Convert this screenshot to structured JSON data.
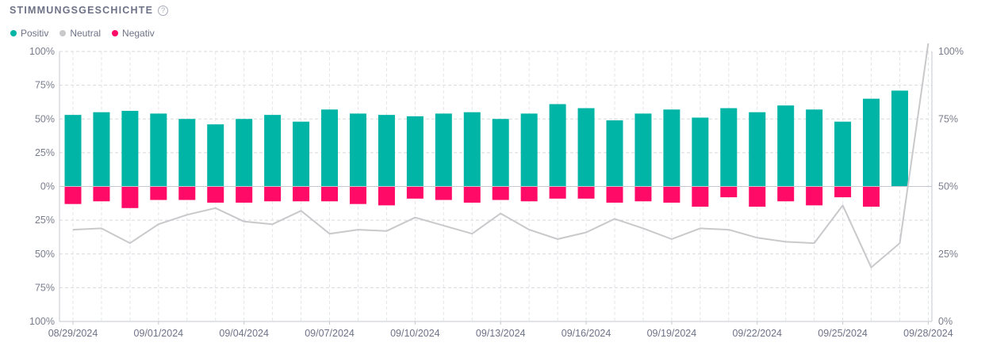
{
  "header": {
    "title": "STIMMUNGSGESCHICHTE",
    "help_icon": "question-circle-icon"
  },
  "legend": [
    {
      "label": "Positiv",
      "color": "#00b5a5"
    },
    {
      "label": "Neutral",
      "color": "#c9c9cc"
    },
    {
      "label": "Negativ",
      "color": "#ff0a66"
    }
  ],
  "chart_data": {
    "type": "bar",
    "categories": [
      "08/29/2024",
      "08/30/2024",
      "08/31/2024",
      "09/01/2024",
      "09/02/2024",
      "09/03/2024",
      "09/04/2024",
      "09/05/2024",
      "09/06/2024",
      "09/07/2024",
      "09/08/2024",
      "09/09/2024",
      "09/10/2024",
      "09/11/2024",
      "09/12/2024",
      "09/13/2024",
      "09/14/2024",
      "09/15/2024",
      "09/16/2024",
      "09/17/2024",
      "09/18/2024",
      "09/19/2024",
      "09/20/2024",
      "09/21/2024",
      "09/22/2024",
      "09/23/2024",
      "09/24/2024",
      "09/25/2024",
      "09/26/2024",
      "09/27/2024",
      "09/28/2024"
    ],
    "x_tick_labels": [
      "08/29/2024",
      "09/01/2024",
      "09/04/2024",
      "09/07/2024",
      "09/10/2024",
      "09/13/2024",
      "09/16/2024",
      "09/19/2024",
      "09/22/2024",
      "09/25/2024",
      "09/28/2024"
    ],
    "series": [
      {
        "name": "Positiv",
        "color": "#00b5a5",
        "axis": "left",
        "values": [
          53,
          55,
          56,
          54,
          50,
          46,
          50,
          53,
          48,
          57,
          54,
          53,
          52,
          54,
          55,
          50,
          54,
          61,
          58,
          49,
          54,
          57,
          51,
          58,
          55,
          60,
          57,
          48,
          65,
          71,
          null
        ]
      },
      {
        "name": "Negativ",
        "color": "#ff0a66",
        "axis": "left",
        "values": [
          -13,
          -11,
          -16,
          -10,
          -10,
          -12,
          -12,
          -11,
          -11,
          -11,
          -13,
          -14,
          -9,
          -10,
          -12,
          -10,
          -11,
          -9,
          -9,
          -12,
          -11,
          -12,
          -15,
          -8,
          -15,
          -11,
          -14,
          -8,
          -15,
          0,
          null
        ]
      },
      {
        "name": "Neutral",
        "color": "#c9c9cc",
        "axis": "right",
        "values": [
          34,
          34.5,
          29,
          36,
          39.5,
          42,
          37,
          36,
          41,
          32.5,
          34,
          33.5,
          38.5,
          35.5,
          32.5,
          40,
          34,
          30.5,
          33,
          38,
          34.5,
          30.5,
          34.5,
          34,
          31,
          29.5,
          29,
          43,
          20,
          29,
          103
        ]
      }
    ],
    "left_axis": {
      "range": [
        -100,
        100
      ],
      "tick_labels": [
        "100%",
        "75%",
        "50%",
        "25%",
        "0%",
        "25%",
        "50%",
        "75%",
        "100%"
      ]
    },
    "right_axis": {
      "range": [
        0,
        100
      ],
      "tick_labels": [
        "100%",
        "75%",
        "50%",
        "25%",
        "0%"
      ]
    },
    "grid": true
  }
}
